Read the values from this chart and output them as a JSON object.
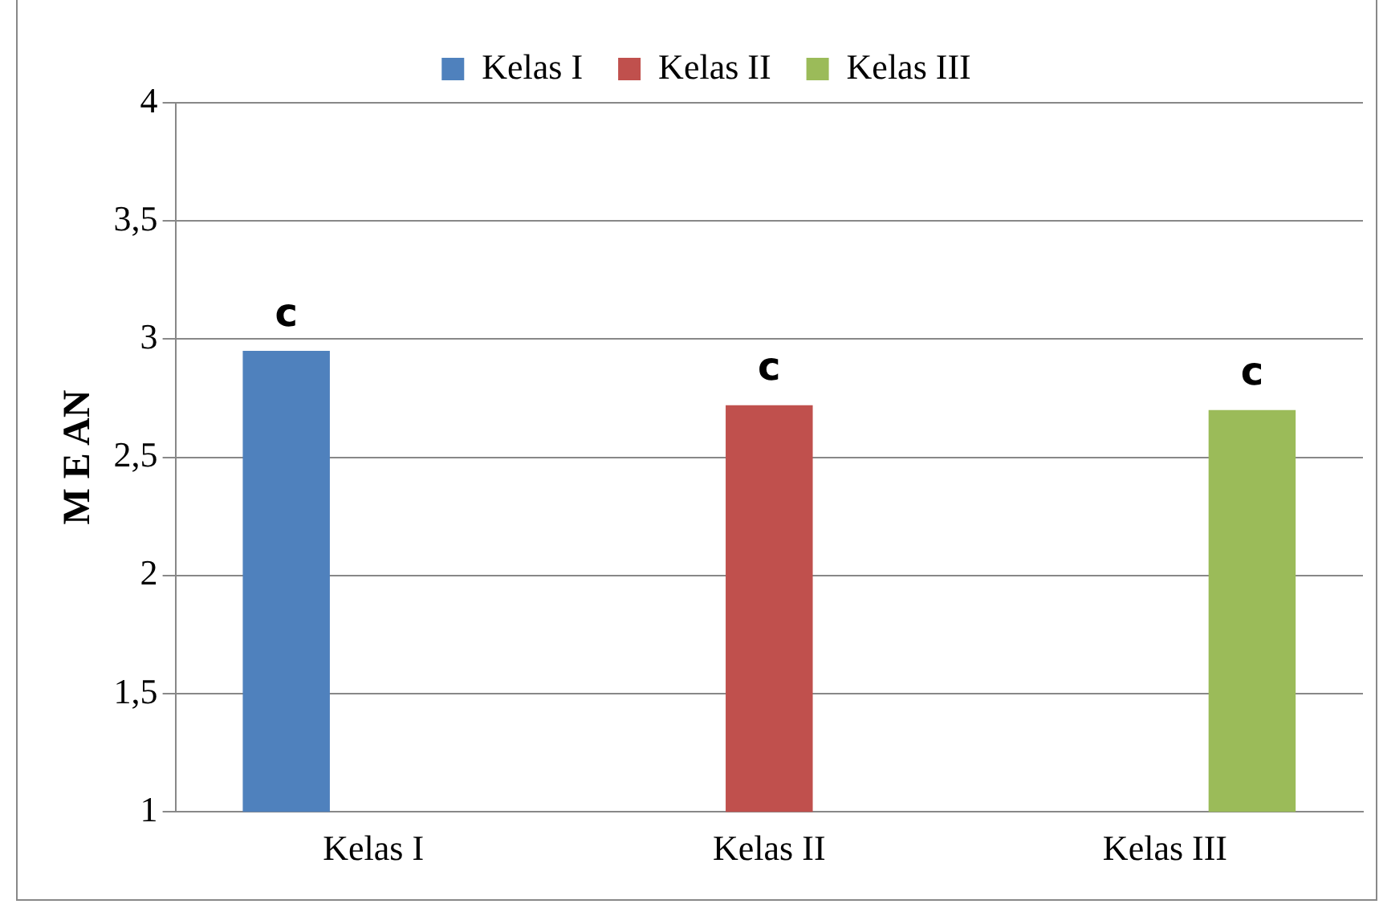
{
  "chart_data": {
    "type": "bar",
    "ylabel": "M E AN",
    "categories": [
      "Kelas I",
      "Kelas II",
      "Kelas III"
    ],
    "series": [
      {
        "name": "Kelas I",
        "color": "#4f81bd",
        "values": [
          2.95,
          null,
          null
        ]
      },
      {
        "name": "Kelas II",
        "color": "#c0504d",
        "values": [
          null,
          2.72,
          null
        ]
      },
      {
        "name": "Kelas III",
        "color": "#9bbb59",
        "values": [
          null,
          null,
          2.7
        ]
      }
    ],
    "ylim": [
      1,
      4
    ],
    "yticks": [
      1,
      {
        "value": 1.5,
        "label": "1,5"
      },
      2,
      {
        "value": 2.5,
        "label": "2,5"
      },
      3,
      {
        "value": 3.5,
        "label": "3,5"
      },
      4
    ],
    "grid": "y",
    "legend": "top",
    "annotations": [
      "c",
      "c",
      "c"
    ]
  }
}
